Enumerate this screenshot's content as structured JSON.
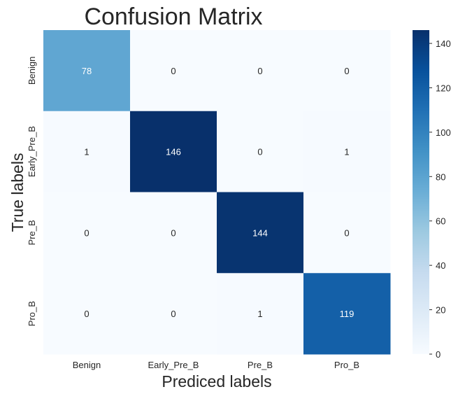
{
  "chart_data": {
    "type": "heatmap",
    "title": "Confusion Matrix",
    "xlabel": "Prediced labels",
    "ylabel": "True labels",
    "x_categories": [
      "Benign",
      "Early_Pre_B",
      "Pre_B",
      "Pro_B"
    ],
    "y_categories": [
      "Benign",
      "Early_Pre_B",
      "Pre_B",
      "Pro_B"
    ],
    "values": [
      [
        78,
        0,
        0,
        0
      ],
      [
        1,
        146,
        0,
        1
      ],
      [
        0,
        0,
        144,
        0
      ],
      [
        0,
        0,
        1,
        119
      ]
    ],
    "colormap": "Blues",
    "vmin": 0,
    "vmax": 146,
    "colorbar_ticks": [
      0,
      20,
      40,
      60,
      80,
      100,
      120,
      140
    ],
    "annotation_colors": {
      "light": "#ffffff",
      "dark": "#262626"
    }
  }
}
